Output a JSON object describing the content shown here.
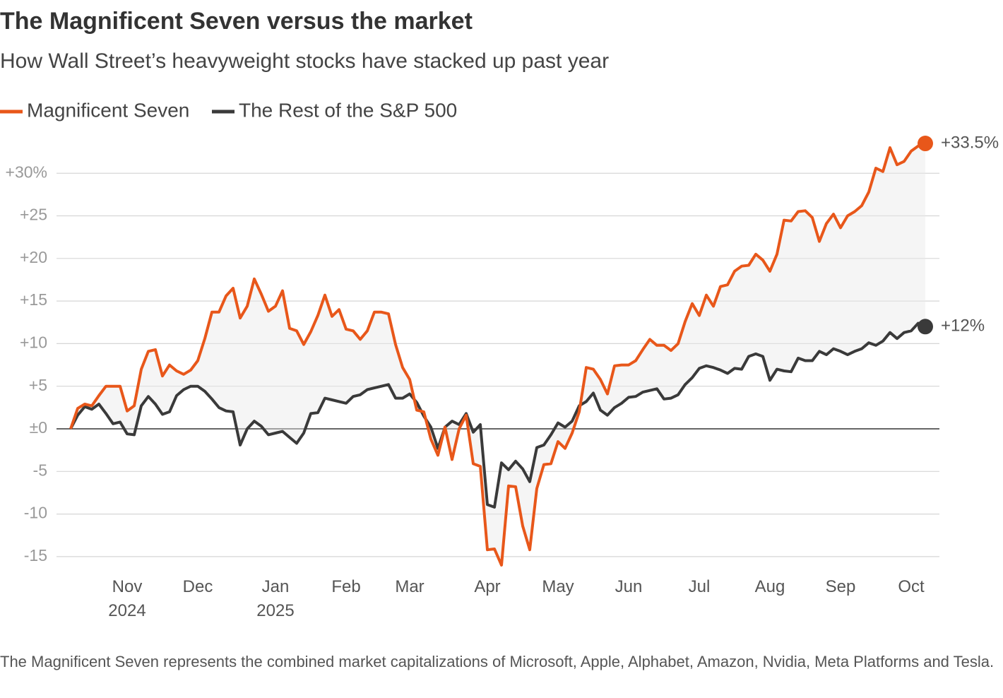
{
  "chart_data": {
    "type": "line",
    "title": "The Magnificent Seven versus the market",
    "subtitle": "How Wall Street’s heavyweight stocks have stacked up past year",
    "note": "The Magnificent Seven represents the combined market capitalizations of Microsoft, Apple, Alphabet, Amazon, Nvidia, Meta Platforms and Tesla.",
    "categories": [
      null,
      null,
      null,
      null,
      null,
      null,
      null,
      null,
      "Nov\n2024",
      null,
      null,
      null,
      null,
      null,
      null,
      null,
      null,
      null,
      "Dec",
      null,
      null,
      null,
      null,
      null,
      null,
      null,
      null,
      null,
      null,
      "Jan\n2025",
      null,
      null,
      null,
      null,
      null,
      null,
      null,
      null,
      null,
      "Feb",
      null,
      null,
      null,
      null,
      null,
      null,
      null,
      null,
      "Mar",
      null,
      null,
      null,
      null,
      null,
      null,
      null,
      null,
      null,
      null,
      "Apr",
      null,
      null,
      null,
      null,
      null,
      null,
      null,
      null,
      null,
      "May",
      null,
      null,
      null,
      null,
      null,
      null,
      null,
      null,
      null,
      "Jun",
      null,
      null,
      null,
      null,
      null,
      null,
      null,
      null,
      null,
      "Jul",
      null,
      null,
      null,
      null,
      null,
      null,
      null,
      null,
      null,
      "Aug",
      null,
      null,
      null,
      null,
      null,
      null,
      null,
      null,
      null,
      "Sep",
      null,
      null,
      null,
      null,
      null,
      null,
      null,
      null,
      null,
      "Oct",
      null,
      null
    ],
    "series": [
      {
        "name": "Magnificent Seven",
        "color": "#e8571a",
        "last_label": "+33.5%",
        "values": [
          0,
          2.4,
          2.9,
          2.7,
          3.9,
          5,
          5,
          5,
          2.1,
          2.7,
          7,
          9.1,
          9.3,
          6.2,
          7.5,
          6.8,
          6.4,
          6.9,
          8,
          10.6,
          13.7,
          13.7,
          15.6,
          16.5,
          13,
          14.4,
          17.6,
          15.8,
          13.8,
          14.4,
          16.2,
          11.8,
          11.5,
          9.9,
          11.4,
          13.3,
          15.7,
          13.2,
          14,
          11.7,
          11.5,
          10.5,
          11.5,
          13.7,
          13.7,
          13.5,
          9.9,
          7.2,
          5.8,
          2.2,
          2,
          -1.2,
          -3.1,
          0.2,
          -3.6,
          0,
          1.6,
          -4.1,
          -4.4,
          -14.2,
          -14.1,
          -16,
          -6.7,
          -6.8,
          -11.4,
          -14.2,
          -7,
          -4.2,
          -4.1,
          -1.5,
          -2.3,
          -0.5,
          2,
          7.2,
          7,
          5.8,
          4.1,
          7.4,
          7.5,
          7.5,
          8,
          9.3,
          10.5,
          9.8,
          9.8,
          9.2,
          10,
          12.6,
          14.7,
          13.3,
          15.7,
          14.4,
          16.7,
          16.9,
          18.5,
          19.1,
          19.2,
          20.5,
          19.8,
          18.5,
          20.5,
          24.5,
          24.4,
          25.5,
          25.6,
          24.8,
          22,
          24.1,
          25.2,
          23.6,
          25,
          25.5,
          26.2,
          27.8,
          30.6,
          30.2,
          33,
          31,
          31.4,
          32.6,
          33.2,
          33.5
        ]
      },
      {
        "name": "The Rest of the S&P 500",
        "color": "#3a3a3a",
        "last_label": "+12%",
        "values": [
          0,
          1.6,
          2.6,
          2.3,
          2.9,
          1.8,
          0.6,
          0.8,
          -0.6,
          -0.7,
          2.7,
          3.8,
          2.9,
          1.7,
          2,
          3.9,
          4.6,
          5,
          5,
          4.4,
          3.5,
          2.5,
          2.1,
          2,
          -1.9,
          0,
          0.9,
          0.3,
          -0.7,
          -0.5,
          -0.3,
          -1,
          -1.7,
          -0.5,
          1.8,
          1.9,
          3.6,
          3.4,
          3.2,
          3,
          3.8,
          4,
          4.6,
          4.8,
          5,
          5.2,
          3.6,
          3.6,
          4.1,
          3.1,
          1.5,
          0.2,
          -2.3,
          0.2,
          0.9,
          0.5,
          1.8,
          -0.4,
          0.5,
          -8.9,
          -9.2,
          -4,
          -4.8,
          -3.8,
          -4.7,
          -6.2,
          -2.2,
          -1.9,
          -0.7,
          0.7,
          0.2,
          0.9,
          2.7,
          3.2,
          4.2,
          2.2,
          1.6,
          2.5,
          3,
          3.7,
          3.8,
          4.3,
          4.5,
          4.7,
          3.5,
          3.6,
          4,
          5.2,
          6,
          7.1,
          7.4,
          7.2,
          6.9,
          6.5,
          7.1,
          7,
          8.5,
          8.8,
          8.5,
          5.7,
          7,
          6.8,
          6.7,
          8.3,
          8,
          8,
          9.1,
          8.7,
          9.4,
          9.1,
          8.7,
          9.1,
          9.4,
          10.1,
          9.8,
          10.3,
          11.3,
          10.6,
          11.3,
          11.5,
          12.4,
          12
        ]
      }
    ],
    "ylim": [
      -17,
      34
    ],
    "yticks": [
      {
        "value": 30,
        "label": "+30%"
      },
      {
        "value": 25,
        "label": "+25"
      },
      {
        "value": 20,
        "label": "+20"
      },
      {
        "value": 15,
        "label": "+15"
      },
      {
        "value": 10,
        "label": "+10"
      },
      {
        "value": 5,
        "label": "+5"
      },
      {
        "value": 0,
        "label": "±0"
      },
      {
        "value": -5,
        "label": "-5"
      },
      {
        "value": -10,
        "label": "-10"
      },
      {
        "value": -15,
        "label": "-15"
      }
    ],
    "grid": true
  }
}
